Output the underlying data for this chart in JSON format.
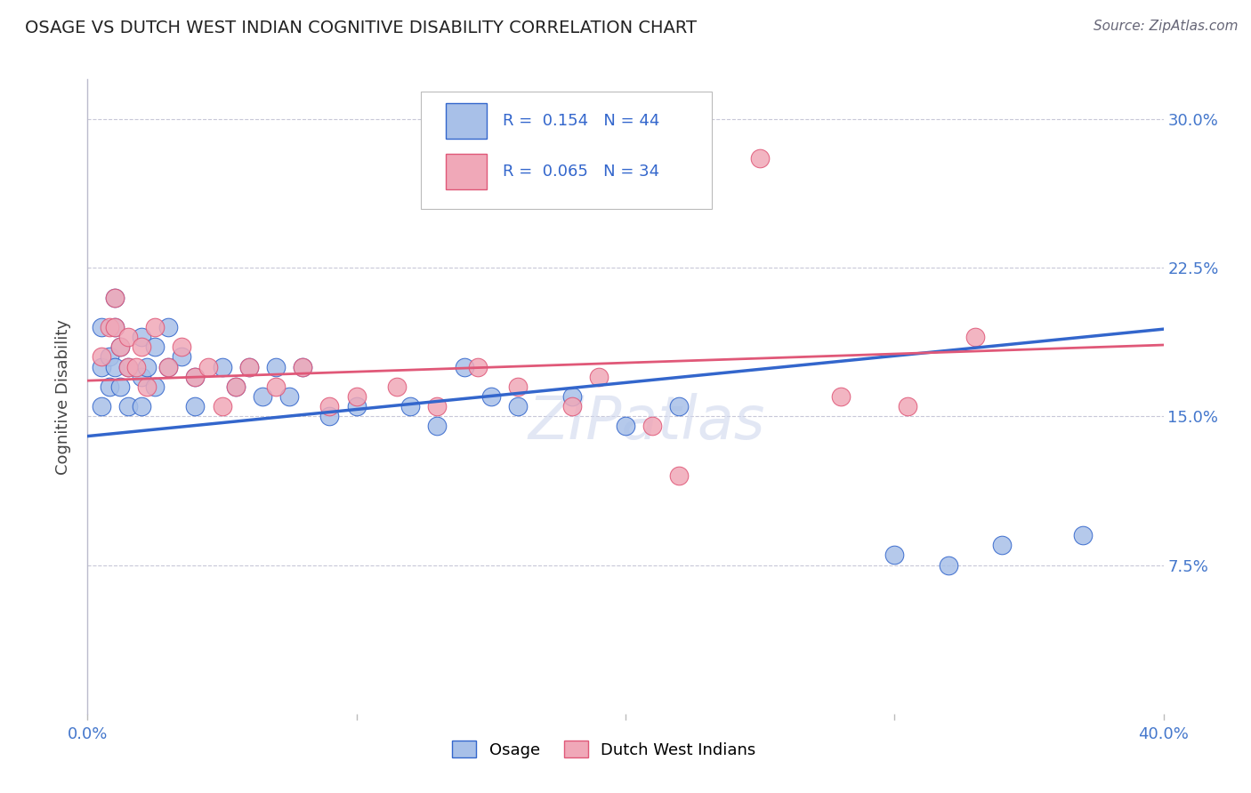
{
  "title": "OSAGE VS DUTCH WEST INDIAN COGNITIVE DISABILITY CORRELATION CHART",
  "source": "Source: ZipAtlas.com",
  "ylabel": "Cognitive Disability",
  "xlabel": "",
  "xlim": [
    0.0,
    0.4
  ],
  "ylim": [
    0.0,
    0.32
  ],
  "xticks": [
    0.0,
    0.1,
    0.2,
    0.3,
    0.4
  ],
  "xtick_labels": [
    "0.0%",
    "",
    "",
    "",
    "40.0%"
  ],
  "ytick_labels_right": [
    "",
    "7.5%",
    "15.0%",
    "22.5%",
    "30.0%"
  ],
  "yticks": [
    0.0,
    0.075,
    0.15,
    0.225,
    0.3
  ],
  "grid_yticks": [
    0.075,
    0.15,
    0.225,
    0.3
  ],
  "osage_R": 0.154,
  "osage_N": 44,
  "dutch_R": 0.065,
  "dutch_N": 34,
  "blue_color": "#a8c0e8",
  "pink_color": "#f0a8b8",
  "blue_line_color": "#3366cc",
  "pink_line_color": "#e05878",
  "background_color": "#ffffff",
  "watermark": "ZIPatlas",
  "osage_x": [
    0.005,
    0.005,
    0.005,
    0.008,
    0.008,
    0.01,
    0.01,
    0.01,
    0.012,
    0.012,
    0.015,
    0.015,
    0.02,
    0.02,
    0.02,
    0.022,
    0.025,
    0.025,
    0.03,
    0.03,
    0.035,
    0.04,
    0.04,
    0.05,
    0.055,
    0.06,
    0.065,
    0.07,
    0.075,
    0.08,
    0.09,
    0.1,
    0.12,
    0.13,
    0.14,
    0.15,
    0.16,
    0.18,
    0.2,
    0.22,
    0.3,
    0.32,
    0.34,
    0.37
  ],
  "osage_y": [
    0.195,
    0.175,
    0.155,
    0.18,
    0.165,
    0.21,
    0.195,
    0.175,
    0.185,
    0.165,
    0.175,
    0.155,
    0.19,
    0.17,
    0.155,
    0.175,
    0.185,
    0.165,
    0.195,
    0.175,
    0.18,
    0.17,
    0.155,
    0.175,
    0.165,
    0.175,
    0.16,
    0.175,
    0.16,
    0.175,
    0.15,
    0.155,
    0.155,
    0.145,
    0.175,
    0.16,
    0.155,
    0.16,
    0.145,
    0.155,
    0.08,
    0.075,
    0.085,
    0.09
  ],
  "dutch_x": [
    0.005,
    0.008,
    0.01,
    0.01,
    0.012,
    0.015,
    0.015,
    0.018,
    0.02,
    0.022,
    0.025,
    0.03,
    0.035,
    0.04,
    0.045,
    0.05,
    0.055,
    0.06,
    0.07,
    0.08,
    0.09,
    0.1,
    0.115,
    0.13,
    0.145,
    0.16,
    0.18,
    0.19,
    0.21,
    0.22,
    0.25,
    0.28,
    0.305,
    0.33
  ],
  "dutch_y": [
    0.18,
    0.195,
    0.21,
    0.195,
    0.185,
    0.175,
    0.19,
    0.175,
    0.185,
    0.165,
    0.195,
    0.175,
    0.185,
    0.17,
    0.175,
    0.155,
    0.165,
    0.175,
    0.165,
    0.175,
    0.155,
    0.16,
    0.165,
    0.155,
    0.175,
    0.165,
    0.155,
    0.17,
    0.145,
    0.12,
    0.28,
    0.16,
    0.155,
    0.19
  ]
}
